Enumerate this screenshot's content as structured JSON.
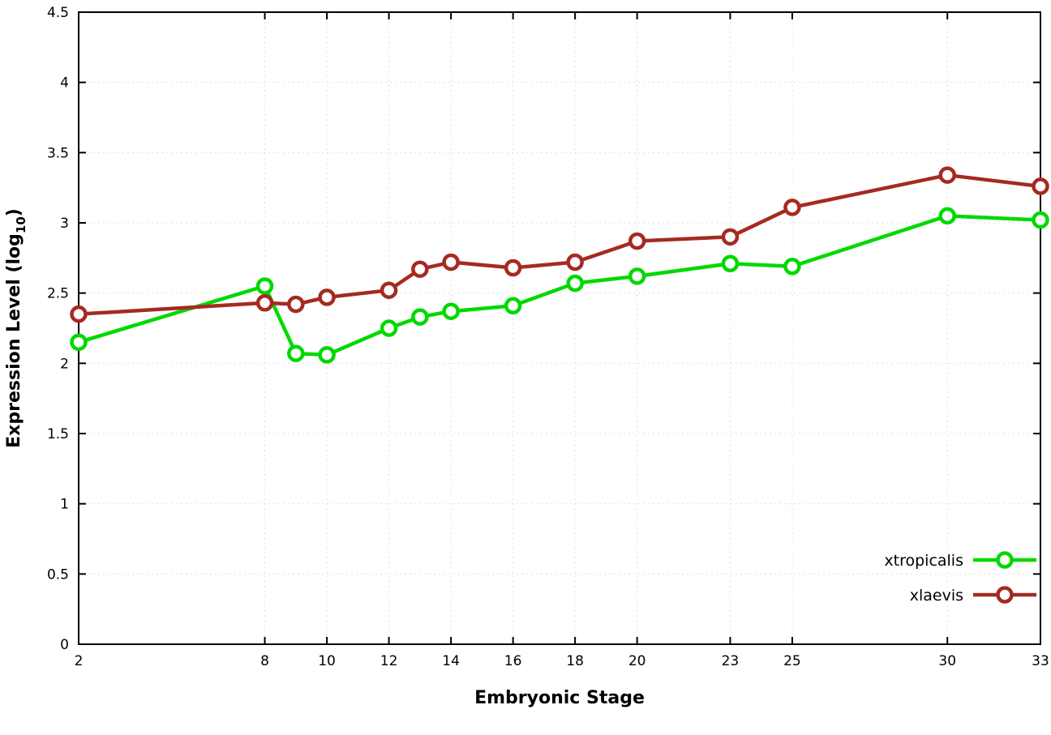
{
  "chart_data": {
    "type": "line",
    "title": "",
    "xlabel": "Embryonic Stage",
    "ylabel": "Expression Level (log10)",
    "ylabel_parts": {
      "main": "Expression Level (log",
      "sub": "10",
      "close": ")"
    },
    "x": [
      2,
      8,
      9,
      10,
      12,
      13,
      14,
      16,
      18,
      20,
      23,
      25,
      30,
      33
    ],
    "series": [
      {
        "name": "xtropicalis",
        "color": "#00d900",
        "values": [
          2.15,
          2.55,
          2.07,
          2.06,
          2.25,
          2.33,
          2.37,
          2.41,
          2.57,
          2.62,
          2.71,
          2.69,
          3.05,
          3.02
        ]
      },
      {
        "name": "xlaevis",
        "color": "#a52a21",
        "values": [
          2.35,
          2.43,
          2.42,
          2.47,
          2.52,
          2.67,
          2.72,
          2.68,
          2.72,
          2.87,
          2.9,
          3.11,
          3.34,
          3.26
        ]
      }
    ],
    "xlim": [
      2,
      33
    ],
    "ylim": [
      0,
      4.5
    ],
    "xticks": [
      2,
      8,
      10,
      12,
      14,
      16,
      18,
      20,
      23,
      25,
      30,
      33
    ],
    "xtick_labels": [
      "2",
      "8",
      "10",
      "12",
      "14",
      "16",
      "18",
      "20",
      "23",
      "25",
      "30",
      "33"
    ],
    "yticks": [
      0,
      0.5,
      1,
      1.5,
      2,
      2.5,
      3,
      3.5,
      4,
      4.5
    ],
    "ytick_labels": [
      "0",
      "0.5",
      "1",
      "1.5",
      "2",
      "2.5",
      "3",
      "3.5",
      "4",
      "4.5"
    ],
    "grid": true,
    "legend_position": "bottom-right",
    "marker": "open-circle",
    "colors": {
      "axis": "#000000",
      "grid": "#e0e0e0",
      "marker_fill": "#ffffff"
    }
  }
}
